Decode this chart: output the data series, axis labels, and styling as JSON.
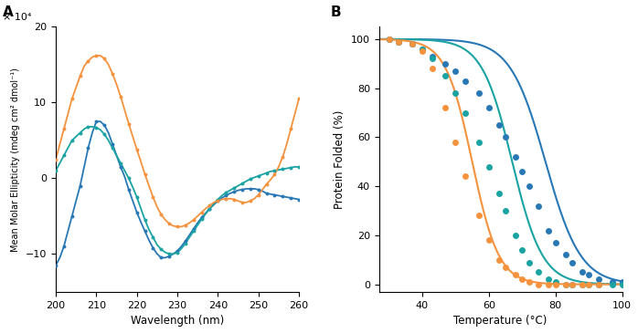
{
  "colors": {
    "blue": "#2878b5",
    "green": "#1ba3a3",
    "orange": "#f5923e"
  },
  "panel_a": {
    "xlabel": "Wavelength (nm)",
    "ylabel_main": "Mean Molar Ellipticity (mdeg cm² dmol⁻¹)",
    "ylabel_exp": "× 10⁴",
    "xlim": [
      200,
      260
    ],
    "ylim": [
      -15,
      20
    ],
    "yticks": [
      -10,
      0,
      10,
      20
    ],
    "xticks": [
      200,
      210,
      220,
      230,
      240,
      250,
      260
    ],
    "blue_x": [
      200,
      201,
      202,
      203,
      204,
      205,
      206,
      207,
      208,
      209,
      210,
      211,
      212,
      213,
      214,
      215,
      216,
      217,
      218,
      219,
      220,
      221,
      222,
      223,
      224,
      225,
      226,
      227,
      228,
      229,
      230,
      231,
      232,
      233,
      234,
      235,
      236,
      237,
      238,
      239,
      240,
      241,
      242,
      243,
      244,
      245,
      246,
      247,
      248,
      249,
      250,
      251,
      252,
      253,
      254,
      255,
      256,
      257,
      258,
      259,
      260
    ],
    "blue_y": [
      -11.5,
      -10.5,
      -9.0,
      -7.0,
      -5.0,
      -3.0,
      -1.0,
      1.5,
      4.0,
      6.0,
      7.5,
      7.5,
      7.0,
      6.0,
      4.5,
      3.0,
      1.5,
      0.2,
      -1.5,
      -3.0,
      -4.5,
      -5.8,
      -7.0,
      -8.2,
      -9.2,
      -10.0,
      -10.5,
      -10.5,
      -10.3,
      -10.0,
      -9.6,
      -9.0,
      -8.3,
      -7.5,
      -6.7,
      -5.9,
      -5.2,
      -4.6,
      -4.0,
      -3.5,
      -3.0,
      -2.6,
      -2.3,
      -2.0,
      -1.8,
      -1.6,
      -1.5,
      -1.4,
      -1.4,
      -1.4,
      -1.5,
      -1.7,
      -2.0,
      -2.1,
      -2.2,
      -2.3,
      -2.4,
      -2.5,
      -2.6,
      -2.7,
      -2.8
    ],
    "green_x": [
      200,
      201,
      202,
      203,
      204,
      205,
      206,
      207,
      208,
      209,
      210,
      211,
      212,
      213,
      214,
      215,
      216,
      217,
      218,
      219,
      220,
      221,
      222,
      223,
      224,
      225,
      226,
      227,
      228,
      229,
      230,
      231,
      232,
      233,
      234,
      235,
      236,
      237,
      238,
      239,
      240,
      241,
      242,
      243,
      244,
      245,
      246,
      247,
      248,
      249,
      250,
      251,
      252,
      253,
      254,
      255,
      256,
      257,
      258,
      259,
      260
    ],
    "green_y": [
      1.0,
      2.0,
      3.0,
      4.0,
      5.0,
      5.5,
      6.0,
      6.5,
      6.8,
      6.8,
      6.7,
      6.4,
      5.8,
      5.0,
      4.0,
      3.0,
      2.0,
      1.0,
      0.0,
      -1.2,
      -2.5,
      -4.0,
      -5.5,
      -6.8,
      -7.8,
      -8.8,
      -9.4,
      -9.8,
      -10.0,
      -10.0,
      -9.8,
      -9.3,
      -8.6,
      -7.8,
      -7.0,
      -6.2,
      -5.4,
      -4.7,
      -4.0,
      -3.4,
      -2.8,
      -2.3,
      -1.9,
      -1.6,
      -1.3,
      -1.0,
      -0.7,
      -0.4,
      -0.1,
      0.1,
      0.3,
      0.5,
      0.7,
      0.9,
      1.0,
      1.1,
      1.2,
      1.3,
      1.4,
      1.5,
      1.5
    ],
    "orange_x": [
      200,
      201,
      202,
      203,
      204,
      205,
      206,
      207,
      208,
      209,
      210,
      211,
      212,
      213,
      214,
      215,
      216,
      217,
      218,
      219,
      220,
      221,
      222,
      223,
      224,
      225,
      226,
      227,
      228,
      229,
      230,
      231,
      232,
      233,
      234,
      235,
      236,
      237,
      238,
      239,
      240,
      241,
      242,
      243,
      244,
      245,
      246,
      247,
      248,
      249,
      250,
      251,
      252,
      253,
      254,
      255,
      256,
      257,
      258,
      259,
      260
    ],
    "orange_y": [
      2.5,
      4.5,
      6.5,
      8.5,
      10.5,
      12.0,
      13.5,
      14.8,
      15.5,
      16.0,
      16.2,
      16.2,
      15.8,
      15.0,
      13.8,
      12.4,
      10.8,
      9.0,
      7.2,
      5.5,
      3.8,
      2.2,
      0.5,
      -1.0,
      -2.5,
      -3.8,
      -4.8,
      -5.5,
      -6.0,
      -6.3,
      -6.4,
      -6.4,
      -6.2,
      -5.9,
      -5.5,
      -5.0,
      -4.5,
      -4.0,
      -3.6,
      -3.2,
      -3.0,
      -2.8,
      -2.7,
      -2.7,
      -2.8,
      -3.0,
      -3.2,
      -3.2,
      -3.0,
      -2.7,
      -2.2,
      -1.5,
      -0.8,
      -0.2,
      0.5,
      1.5,
      2.8,
      4.5,
      6.5,
      8.5,
      10.5
    ]
  },
  "panel_b": {
    "xlabel": "Temperature (°C)",
    "ylabel": "Protein Folded (%)",
    "xlim": [
      27,
      100
    ],
    "ylim": [
      -3,
      105
    ],
    "yticks": [
      0,
      20,
      40,
      60,
      80,
      100
    ],
    "xticks": [
      40,
      60,
      80,
      100
    ],
    "blue_tm": 77.0,
    "blue_k": 0.19,
    "blue_dots_x": [
      30,
      33,
      37,
      40,
      43,
      47,
      50,
      53,
      57,
      60,
      63,
      65,
      68,
      70,
      72,
      75,
      78,
      80,
      83,
      85,
      88,
      90,
      93,
      97,
      100
    ],
    "blue_dots_y": [
      100,
      99,
      98,
      96,
      93,
      90,
      87,
      83,
      78,
      72,
      65,
      60,
      52,
      46,
      40,
      32,
      22,
      17,
      12,
      9,
      5,
      4,
      2,
      1,
      1
    ],
    "green_tm": 67.0,
    "green_k": 0.22,
    "green_dots_x": [
      30,
      33,
      37,
      40,
      43,
      47,
      50,
      53,
      57,
      60,
      63,
      65,
      68,
      70,
      72,
      75,
      78,
      80,
      83,
      85,
      88,
      90,
      93,
      97,
      100
    ],
    "green_dots_y": [
      100,
      99,
      98,
      96,
      92,
      85,
      78,
      70,
      58,
      48,
      37,
      30,
      20,
      14,
      9,
      5,
      2,
      1,
      0,
      0,
      0,
      0,
      0,
      0,
      0
    ],
    "orange_tm": 55.0,
    "orange_k": 0.25,
    "orange_dots_x": [
      30,
      33,
      37,
      40,
      43,
      47,
      50,
      53,
      57,
      60,
      63,
      65,
      68,
      70,
      72,
      75,
      78,
      80,
      83,
      85,
      88,
      90,
      93
    ],
    "orange_dots_y": [
      100,
      99,
      98,
      95,
      88,
      72,
      58,
      44,
      28,
      18,
      10,
      7,
      4,
      2,
      1,
      0,
      0,
      0,
      0,
      0,
      0,
      0,
      0
    ]
  }
}
